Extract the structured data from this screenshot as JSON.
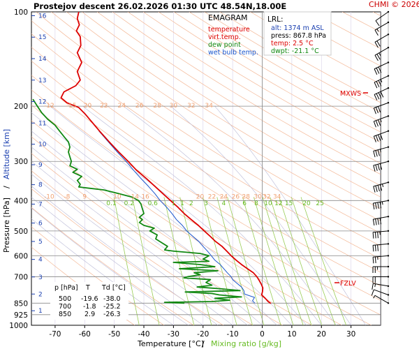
{
  "header": {
    "title": "Prostejov   descent   26.02.2026 01:30 UTC  48.54N,18.00E",
    "copyright": "CHMI © 2026"
  },
  "legend": {
    "title": "EMAGRAM",
    "entries": [
      {
        "label": "temperature",
        "color": "#dd0000"
      },
      {
        "label": "virt.temp.",
        "color": "#dd0000"
      },
      {
        "label": "dew point",
        "color": "#118811"
      },
      {
        "label": "wet bulb temp.",
        "color": "#1a55cc"
      }
    ]
  },
  "lrl_box": {
    "title": "LRL:",
    "lines": [
      {
        "text": "alt: 1374 m ASL",
        "color": "#1a3fb0"
      },
      {
        "text": "press: 867.8 hPa",
        "color": "#000000"
      },
      {
        "text": "temp: 2.5 °C",
        "color": "#dd0000"
      },
      {
        "text": "dwpt: -21.1 °C",
        "color": "#118811"
      }
    ]
  },
  "table": {
    "headers": [
      "p [hPa]",
      "T",
      "Td [°C]"
    ],
    "rows": [
      [
        "500",
        "-19.6",
        "-38.0"
      ],
      [
        "700",
        "-1.8",
        "-25.2"
      ],
      [
        "850",
        "2.9",
        "-26.3"
      ]
    ]
  },
  "markers": {
    "mxws": "MXWS",
    "fzlv": "FZLV"
  },
  "chart_data": {
    "type": "line",
    "title": "Prostejov   descent   26.02.2026 01:30 UTC  48.54N,18.00E",
    "xlabel": "Temperature [°C]",
    "xlabel_sep": "/",
    "xlabel2": "Mixing ratio [g/kg]",
    "ylabel": "Pressure [hPa]",
    "ylabel_sep": "/",
    "ylabel2": "Altitude [km]",
    "x_scale": "linear",
    "y_scale": "log",
    "xlim": [
      -78,
      40
    ],
    "ylim": [
      1000,
      100
    ],
    "x_ticks": [
      -70,
      -60,
      -50,
      -40,
      -30,
      -20,
      -10,
      0,
      10,
      20,
      30
    ],
    "y_ticks": [
      100,
      200,
      300,
      400,
      500,
      600,
      700,
      850,
      925,
      1000
    ],
    "altitude_ticks_km": [
      "1",
      "2",
      "3",
      "4",
      "5",
      "6",
      "7",
      "8",
      "9",
      "10",
      "11",
      "12",
      "13",
      "14",
      "15",
      "16"
    ],
    "dry_adiabat_labels_200": [
      "-12",
      "-15",
      "20",
      "22",
      "24",
      "26",
      "28",
      "30",
      "32",
      "34"
    ],
    "dry_adiabat_labels_400": [
      "-10",
      "-8",
      "9",
      "10",
      "14",
      "16",
      "20",
      "22",
      "24",
      "26",
      "28",
      "30",
      "32",
      "34"
    ],
    "mixing_ratio_labels": [
      "0.1",
      "0.2",
      "0.6",
      "1",
      "1",
      "2",
      "3",
      "4",
      "6",
      "8",
      "10",
      "12",
      "15",
      "20",
      "25"
    ],
    "temperature": [
      [
        852,
        2.9
      ],
      [
        840,
        2.0
      ],
      [
        820,
        1.0
      ],
      [
        800,
        -0.2
      ],
      [
        780,
        0.1
      ],
      [
        760,
        0.2
      ],
      [
        740,
        -0.3
      ],
      [
        720,
        -1.0
      ],
      [
        700,
        -1.8
      ],
      [
        680,
        -3.0
      ],
      [
        660,
        -5.0
      ],
      [
        640,
        -7.0
      ],
      [
        620,
        -8.8
      ],
      [
        600,
        -10.5
      ],
      [
        580,
        -12.0
      ],
      [
        560,
        -13.6
      ],
      [
        540,
        -15.8
      ],
      [
        520,
        -17.6
      ],
      [
        500,
        -19.6
      ],
      [
        480,
        -21.6
      ],
      [
        460,
        -24.0
      ],
      [
        440,
        -26.4
      ],
      [
        420,
        -28.5
      ],
      [
        400,
        -31.0
      ],
      [
        380,
        -33.6
      ],
      [
        360,
        -36.3
      ],
      [
        340,
        -39.2
      ],
      [
        320,
        -42.5
      ],
      [
        300,
        -45.3
      ],
      [
        280,
        -48.5
      ],
      [
        260,
        -51.7
      ],
      [
        240,
        -55.0
      ],
      [
        225,
        -57.5
      ],
      [
        212,
        -59.8
      ],
      [
        202,
        -62.0
      ],
      [
        195,
        -66.0
      ],
      [
        188,
        -68.0
      ],
      [
        180,
        -67.0
      ],
      [
        172,
        -63.0
      ],
      [
        165,
        -61.5
      ],
      [
        155,
        -62.5
      ],
      [
        145,
        -61.0
      ],
      [
        135,
        -62.5
      ],
      [
        128,
        -61.3
      ],
      [
        120,
        -61.5
      ],
      [
        115,
        -62.8
      ],
      [
        110,
        -61.8
      ],
      [
        105,
        -62.5
      ],
      [
        100,
        -62.0
      ]
    ],
    "dew_point": [
      [
        850,
        -26.3
      ],
      [
        845,
        -33.0
      ],
      [
        840,
        -17.0
      ],
      [
        832,
        -11.0
      ],
      [
        820,
        -16.0
      ],
      [
        812,
        -7.0
      ],
      [
        800,
        -14.5
      ],
      [
        792,
        -17.0
      ],
      [
        783,
        -26.0
      ],
      [
        775,
        -7.5
      ],
      [
        765,
        -14.0
      ],
      [
        755,
        -22.0
      ],
      [
        745,
        -17.0
      ],
      [
        730,
        -19.0
      ],
      [
        715,
        -17.5
      ],
      [
        706,
        -26.5
      ],
      [
        700,
        -25.2
      ],
      [
        690,
        -21.0
      ],
      [
        680,
        -23.0
      ],
      [
        670,
        -15.0
      ],
      [
        660,
        -28.0
      ],
      [
        650,
        -16.0
      ],
      [
        640,
        -21.0
      ],
      [
        630,
        -30.0
      ],
      [
        625,
        -18.0
      ],
      [
        615,
        -20.0
      ],
      [
        600,
        -18.0
      ],
      [
        590,
        -21.0
      ],
      [
        580,
        -30.0
      ],
      [
        575,
        -33.0
      ],
      [
        560,
        -32.0
      ],
      [
        545,
        -34.0
      ],
      [
        530,
        -36.0
      ],
      [
        515,
        -35.5
      ],
      [
        500,
        -38.0
      ],
      [
        490,
        -36.5
      ],
      [
        480,
        -40.0
      ],
      [
        470,
        -41.5
      ],
      [
        460,
        -40.5
      ],
      [
        452,
        -41.5
      ],
      [
        440,
        -40.0
      ],
      [
        425,
        -40.5
      ],
      [
        410,
        -41.0
      ],
      [
        400,
        -41.8
      ],
      [
        390,
        -44.0
      ],
      [
        380,
        -48.5
      ],
      [
        370,
        -53.5
      ],
      [
        362,
        -62.0
      ],
      [
        355,
        -61.5
      ],
      [
        345,
        -62.5
      ],
      [
        335,
        -61.0
      ],
      [
        325,
        -64.0
      ],
      [
        318,
        -62.5
      ],
      [
        310,
        -65.0
      ],
      [
        300,
        -64.5
      ],
      [
        290,
        -65.0
      ],
      [
        280,
        -65.5
      ],
      [
        270,
        -65.0
      ],
      [
        260,
        -65.5
      ],
      [
        250,
        -67.0
      ],
      [
        240,
        -68.5
      ],
      [
        230,
        -70.0
      ],
      [
        220,
        -72.5
      ],
      [
        210,
        -74.5
      ],
      [
        200,
        -76.0
      ],
      [
        190,
        -77.5
      ]
    ],
    "wet_bulb": [
      [
        850,
        -2.5
      ],
      [
        835,
        -3.3
      ],
      [
        815,
        -2.6
      ],
      [
        795,
        -6.0
      ],
      [
        775,
        -6.2
      ],
      [
        755,
        -7.0
      ],
      [
        735,
        -8.5
      ],
      [
        715,
        -10.0
      ],
      [
        700,
        -10.5
      ],
      [
        680,
        -11.8
      ],
      [
        660,
        -13.0
      ],
      [
        640,
        -14.2
      ],
      [
        620,
        -16.0
      ],
      [
        600,
        -17.2
      ],
      [
        580,
        -18.5
      ],
      [
        560,
        -20.0
      ],
      [
        540,
        -21.5
      ],
      [
        520,
        -23.5
      ],
      [
        500,
        -25.5
      ],
      [
        480,
        -27.0
      ],
      [
        460,
        -29.0
      ],
      [
        440,
        -30.5
      ],
      [
        420,
        -32.3
      ],
      [
        400,
        -34.5
      ],
      [
        380,
        -36.3
      ],
      [
        360,
        -38.5
      ],
      [
        340,
        -41.0
      ],
      [
        320,
        -43.5
      ],
      [
        300,
        -46.0
      ],
      [
        280,
        -49.0
      ],
      [
        260,
        -52.0
      ],
      [
        240,
        -55.2
      ]
    ],
    "dry_adiabats_theta_K": [
      230,
      240,
      250,
      260,
      270,
      280,
      290,
      300,
      310,
      320,
      330,
      340,
      350,
      360,
      370,
      380,
      390,
      400,
      410,
      420,
      430,
      440,
      450,
      460,
      470,
      480,
      490,
      500,
      520,
      540,
      560,
      580,
      600
    ],
    "moist_adiabats_C": [
      -30,
      -25,
      -20,
      -15,
      -10,
      -5,
      0,
      5,
      10,
      15,
      20,
      25,
      30,
      35
    ],
    "mixing_ratio_lines_gkg": [
      0.1,
      0.2,
      0.6,
      1,
      2,
      3,
      4,
      6,
      8,
      10,
      12,
      15,
      20,
      25
    ],
    "freezing_level_hPa": 715,
    "max_wind_hPa": 180,
    "wind_barbs": [
      {
        "p": 850,
        "dir": 300,
        "spd": 5
      },
      {
        "p": 800,
        "dir": 290,
        "spd": 10
      },
      {
        "p": 750,
        "dir": 280,
        "spd": 15
      },
      {
        "p": 700,
        "dir": 270,
        "spd": 20
      },
      {
        "p": 650,
        "dir": 270,
        "spd": 25
      },
      {
        "p": 600,
        "dir": 265,
        "spd": 25
      },
      {
        "p": 550,
        "dir": 265,
        "spd": 30
      },
      {
        "p": 500,
        "dir": 265,
        "spd": 35
      },
      {
        "p": 450,
        "dir": 260,
        "spd": 40
      },
      {
        "p": 400,
        "dir": 260,
        "spd": 45
      },
      {
        "p": 350,
        "dir": 255,
        "spd": 45
      },
      {
        "p": 300,
        "dir": 255,
        "spd": 40
      },
      {
        "p": 270,
        "dir": 255,
        "spd": 35
      },
      {
        "p": 240,
        "dir": 250,
        "spd": 40
      },
      {
        "p": 215,
        "dir": 250,
        "spd": 35
      },
      {
        "p": 195,
        "dir": 250,
        "spd": 30
      },
      {
        "p": 175,
        "dir": 245,
        "spd": 40
      },
      {
        "p": 160,
        "dir": 245,
        "spd": 35
      },
      {
        "p": 145,
        "dir": 245,
        "spd": 30
      },
      {
        "p": 130,
        "dir": 240,
        "spd": 25
      },
      {
        "p": 118,
        "dir": 240,
        "spd": 20
      },
      {
        "p": 108,
        "dir": 240,
        "spd": 15
      },
      {
        "p": 100,
        "dir": 235,
        "spd": 10
      }
    ],
    "colors": {
      "temperature": "#dd0000",
      "dew_point": "#118811",
      "wet_bulb": "#1a55cc",
      "dry_adiabat": "#f4b896",
      "moist_adiabat": "#b9b9d6",
      "mixing_ratio": "#99cc55",
      "isobar": "#888888"
    }
  }
}
